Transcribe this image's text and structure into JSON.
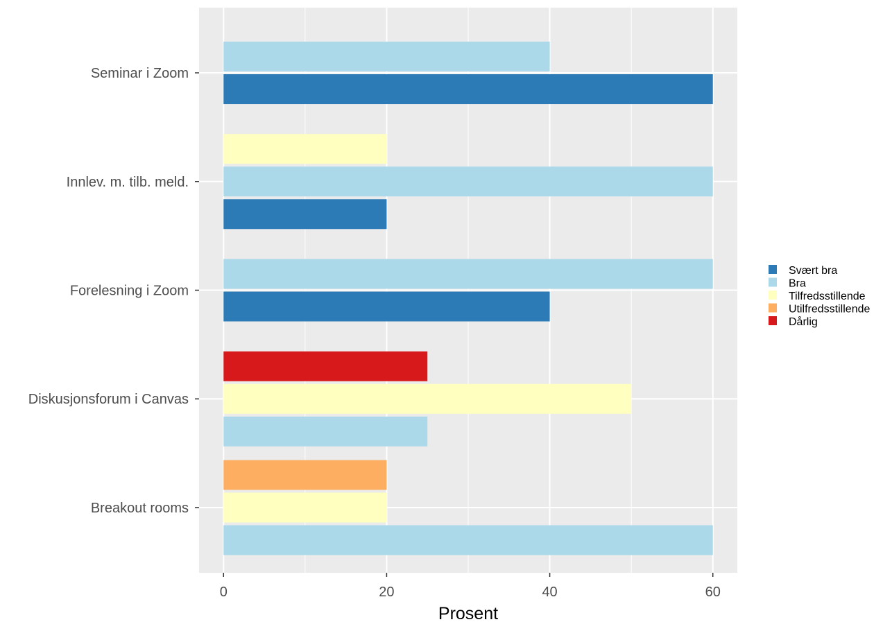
{
  "chart_data": {
    "type": "bar",
    "orientation": "horizontal",
    "categories": [
      "Seminar i Zoom",
      "Innlev. m. tilb. meld.",
      "Forelesning i Zoom",
      "Diskusjonsforum i Canvas",
      "Breakout rooms"
    ],
    "series": [
      {
        "name": "Svært bra",
        "color": "#2c7bb6",
        "values": [
          60,
          20,
          40,
          null,
          null
        ]
      },
      {
        "name": "Bra",
        "color": "#abd9e9",
        "values": [
          40,
          60,
          60,
          25,
          60
        ]
      },
      {
        "name": "Tilfredsstillende",
        "color": "#ffffbf",
        "values": [
          null,
          20,
          null,
          50,
          20
        ]
      },
      {
        "name": "Utilfredsstillende",
        "color": "#fdae61",
        "values": [
          null,
          null,
          null,
          null,
          20
        ]
      },
      {
        "name": "Dårlig",
        "color": "#d7191c",
        "values": [
          null,
          null,
          null,
          25,
          null
        ]
      }
    ],
    "xlabel": "Prosent",
    "ylabel": "",
    "xlim": [
      -3,
      63
    ],
    "xticks": [
      0,
      20,
      40,
      60
    ],
    "x_tick_labels": [
      "0",
      "20",
      "40",
      "60"
    ],
    "grid": true,
    "legend_position": "right"
  }
}
